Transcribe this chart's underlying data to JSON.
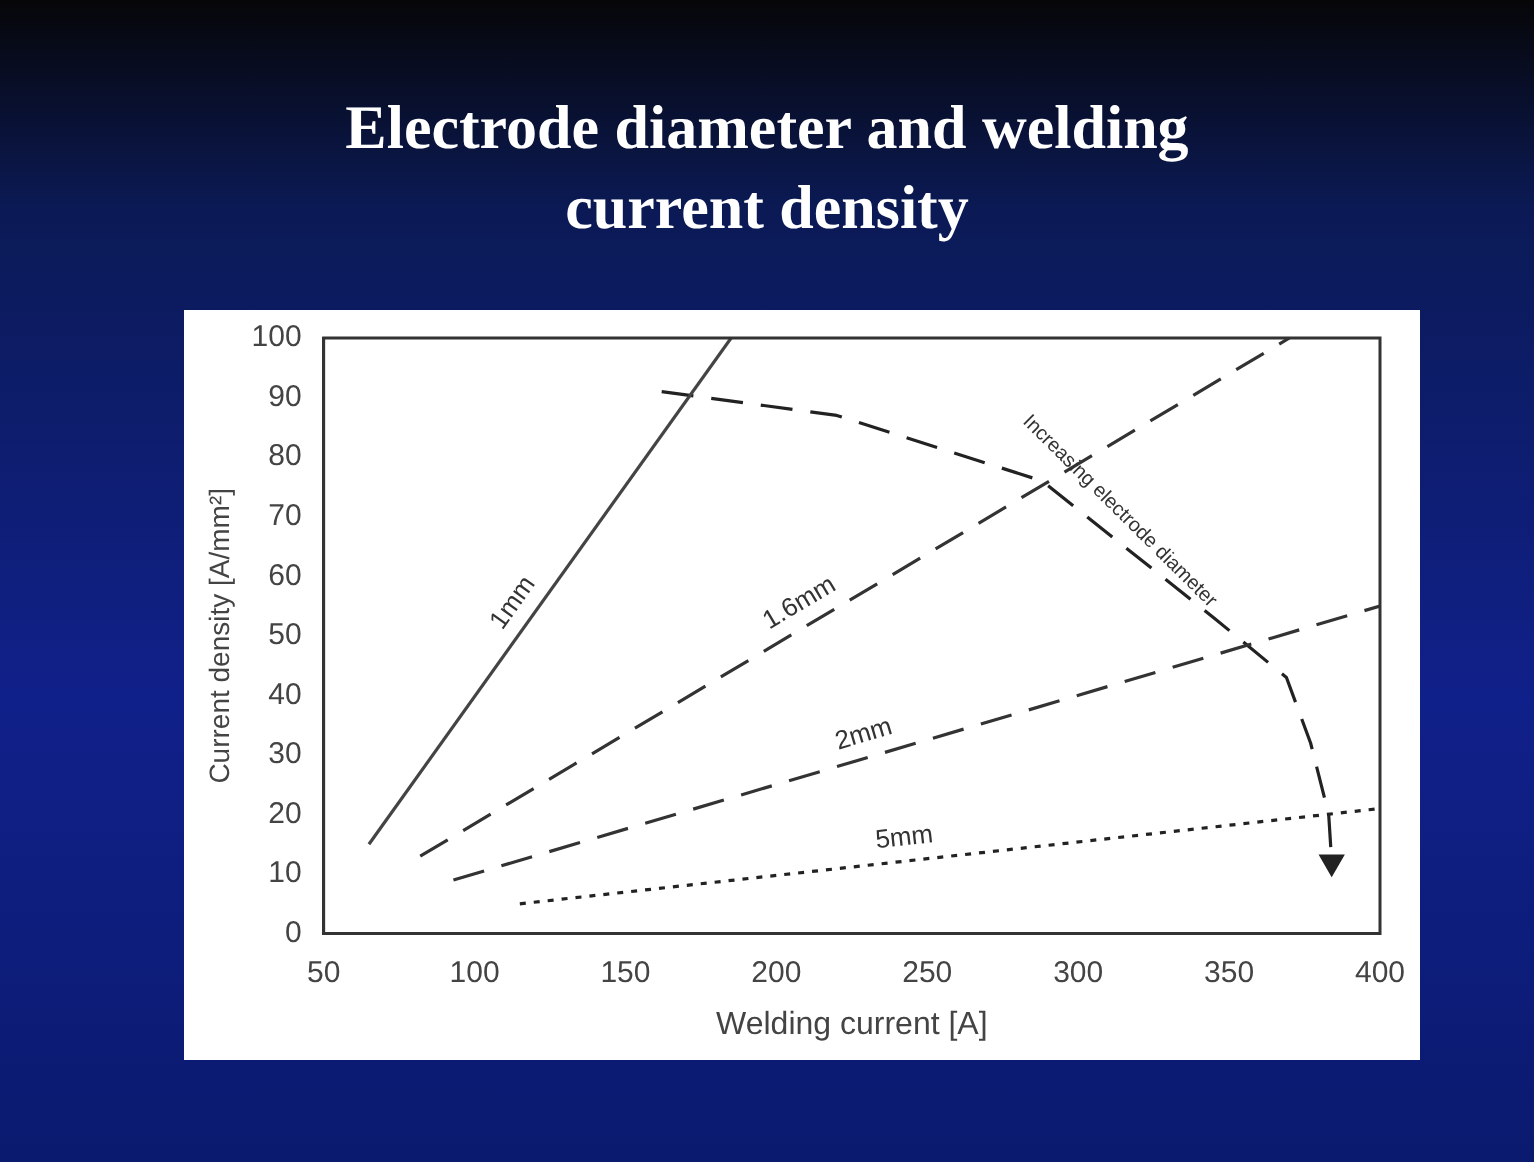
{
  "chart_data": {
    "type": "line",
    "title": "Electrode diameter and welding current density",
    "xlabel": "Welding current [A]",
    "ylabel": "Current density [A/mm²]",
    "xlim": [
      50,
      400
    ],
    "xticks": [
      50,
      100,
      150,
      200,
      250,
      300,
      350,
      400
    ],
    "ylim": [
      0,
      100
    ],
    "yticks": [
      0,
      10,
      20,
      30,
      40,
      50,
      60,
      70,
      80,
      90,
      100
    ],
    "grid": false,
    "legend": false,
    "marker": "none",
    "series": [
      {
        "name": "1mm",
        "color": "#444444",
        "line_style": "solid",
        "x": [
          65,
          185
        ],
        "values": [
          15,
          100
        ]
      },
      {
        "name": "1.6mm",
        "color": "#333333",
        "line_style": "dashed",
        "x": [
          82,
          370
        ],
        "values": [
          13,
          100
        ]
      },
      {
        "name": "2mm",
        "color": "#333333",
        "line_style": "dashed",
        "x": [
          93,
          400
        ],
        "values": [
          9,
          55
        ]
      },
      {
        "name": "5mm",
        "color": "#222222",
        "line_style": "dotted",
        "x": [
          115,
          400
        ],
        "values": [
          5,
          21
        ]
      },
      {
        "color": "#222222",
        "line_style": "dashed",
        "x": [
          162,
          220,
          288,
          345,
          369,
          377,
          383,
          384
        ],
        "values": [
          91,
          87,
          76,
          53,
          43,
          32,
          20,
          12
        ]
      }
    ],
    "annotations": [
      {
        "text": "Increasing electrode diameter",
        "x": 310,
        "y": 69
      }
    ]
  }
}
